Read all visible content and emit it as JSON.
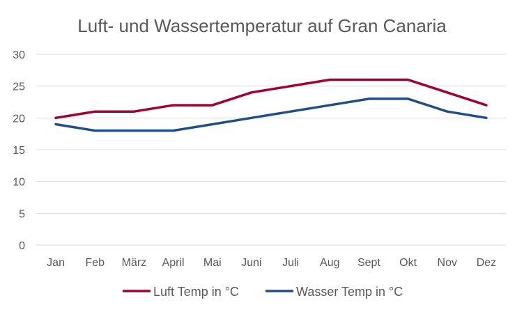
{
  "chart_data": {
    "type": "line",
    "title": "Luft- und Wassertemperatur auf Gran Canaria",
    "xlabel": "",
    "ylabel": "",
    "categories": [
      "Jan",
      "Feb",
      "März",
      "April",
      "Mai",
      "Juni",
      "Juli",
      "Aug",
      "Sept",
      "Okt",
      "Nov",
      "Dez"
    ],
    "ylim": [
      0,
      30
    ],
    "yticks": [
      "0",
      "5",
      "10",
      "15",
      "20",
      "25",
      "30"
    ],
    "grid": true,
    "legend_position": "bottom",
    "series": [
      {
        "name": "Luft Temp in °C",
        "color": "#a50034",
        "values": [
          20,
          21,
          21,
          22,
          22,
          24,
          25,
          26,
          26,
          26,
          24,
          22
        ]
      },
      {
        "name": "Wasser Temp in °C",
        "color": "#1f4e8c",
        "values": [
          19,
          18,
          18,
          18,
          19,
          20,
          21,
          22,
          23,
          23,
          21,
          20
        ]
      }
    ]
  }
}
